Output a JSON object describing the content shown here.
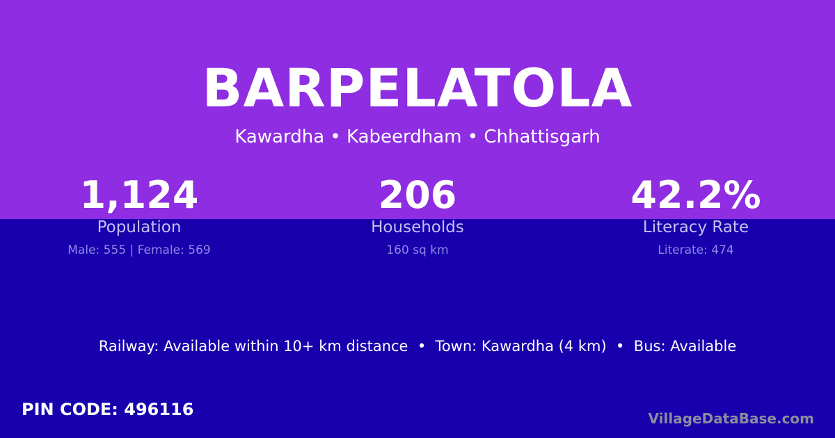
{
  "village": "BARPELATOLA",
  "location": "Kawardha • Kabeerdham • Chhattisgarh",
  "stats": [
    {
      "value": "1,124",
      "label": "Population",
      "detail": "Male: 555 | Female: 569"
    },
    {
      "value": "206",
      "label": "Households",
      "detail": "160 sq km"
    },
    {
      "value": "42.2%",
      "label": "Literacy Rate",
      "detail": "Literate: 474"
    }
  ],
  "connectivity": "Railway: Available within 10+ km distance  •  Town: Kawardha (4 km)  •  Bus: Available",
  "pin_code": "PIN CODE: 496116",
  "brand": "VillageDataBase.com",
  "colors": {
    "top": "#8e2de2",
    "bottom": "#1800ad"
  }
}
